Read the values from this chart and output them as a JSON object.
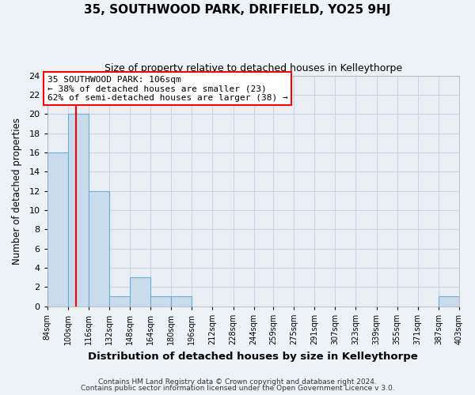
{
  "title": "35, SOUTHWOOD PARK, DRIFFIELD, YO25 9HJ",
  "subtitle": "Size of property relative to detached houses in Kelleythorpe",
  "xlabel": "Distribution of detached houses by size in Kelleythorpe",
  "ylabel": "Number of detached properties",
  "bin_edges": [
    84,
    100,
    116,
    132,
    148,
    164,
    180,
    196,
    212,
    228,
    244,
    259,
    275,
    291,
    307,
    323,
    339,
    355,
    371,
    387,
    403
  ],
  "counts": [
    16,
    20,
    12,
    1,
    3,
    1,
    1,
    0,
    0,
    0,
    0,
    0,
    0,
    0,
    0,
    0,
    0,
    0,
    0,
    1
  ],
  "bar_color": "#c9dced",
  "bar_edge_color": "#6aadd5",
  "red_line_x": 106,
  "ylim": [
    0,
    24
  ],
  "yticks": [
    0,
    2,
    4,
    6,
    8,
    10,
    12,
    14,
    16,
    18,
    20,
    22,
    24
  ],
  "xtick_labels": [
    "84sqm",
    "100sqm",
    "116sqm",
    "132sqm",
    "148sqm",
    "164sqm",
    "180sqm",
    "196sqm",
    "212sqm",
    "228sqm",
    "244sqm",
    "259sqm",
    "275sqm",
    "291sqm",
    "307sqm",
    "323sqm",
    "339sqm",
    "355sqm",
    "371sqm",
    "387sqm",
    "403sqm"
  ],
  "annotation_title": "35 SOUTHWOOD PARK: 106sqm",
  "annotation_line1": "← 38% of detached houses are smaller (23)",
  "annotation_line2": "62% of semi-detached houses are larger (38) →",
  "footer1": "Contains HM Land Registry data © Crown copyright and database right 2024.",
  "footer2": "Contains public sector information licensed under the Open Government Licence v 3.0.",
  "background_color": "#edf2f7",
  "plot_bg_color": "#e8eef4",
  "grid_color": "#c5d4e3",
  "title_fontsize": 11,
  "subtitle_fontsize": 9,
  "xlabel_fontsize": 9.5,
  "ylabel_fontsize": 8.5,
  "annot_fontsize": 8,
  "footer_fontsize": 6.5
}
